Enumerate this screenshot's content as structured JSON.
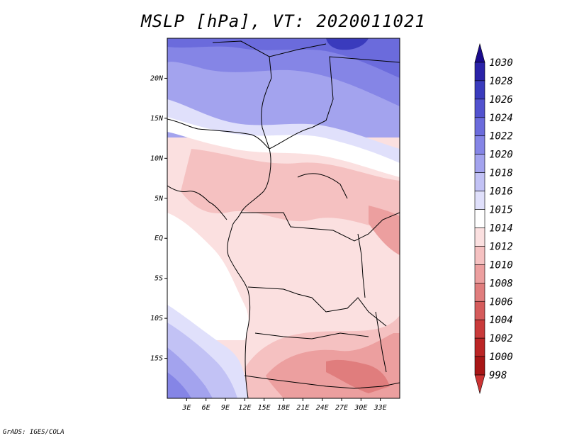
{
  "title": "MSLP [hPa], VT: 2020011021",
  "credit": "GrADS: IGES/COLA",
  "map": {
    "lon_range": [
      0,
      36
    ],
    "lat_range": [
      -20,
      25
    ],
    "lat_labels": [
      "20N",
      "15N",
      "10N",
      "5N",
      "EQ",
      "5S",
      "10S",
      "15S"
    ],
    "lon_labels": [
      "3E",
      "6E",
      "9E",
      "12E",
      "15E",
      "18E",
      "21E",
      "24E",
      "27E",
      "30E",
      "33E"
    ]
  },
  "colorbar": {
    "levels": [
      "1030",
      "1028",
      "1026",
      "1024",
      "1022",
      "1020",
      "1018",
      "1016",
      "1015",
      "1014",
      "1012",
      "1010",
      "1008",
      "1006",
      "1004",
      "1002",
      "1000",
      "998"
    ],
    "colors": [
      "#1a0a8c",
      "#2a22a8",
      "#3a3bbd",
      "#5252cf",
      "#6b6bdc",
      "#8585e6",
      "#a3a3ee",
      "#c2c2f5",
      "#e0e0fb",
      "#ffffff",
      "#fbe0e0",
      "#f5c1c1",
      "#ec9f9f",
      "#e07d7d",
      "#d55b5b",
      "#c93a3a",
      "#bb2525",
      "#a81616",
      "#cc3333"
    ]
  }
}
